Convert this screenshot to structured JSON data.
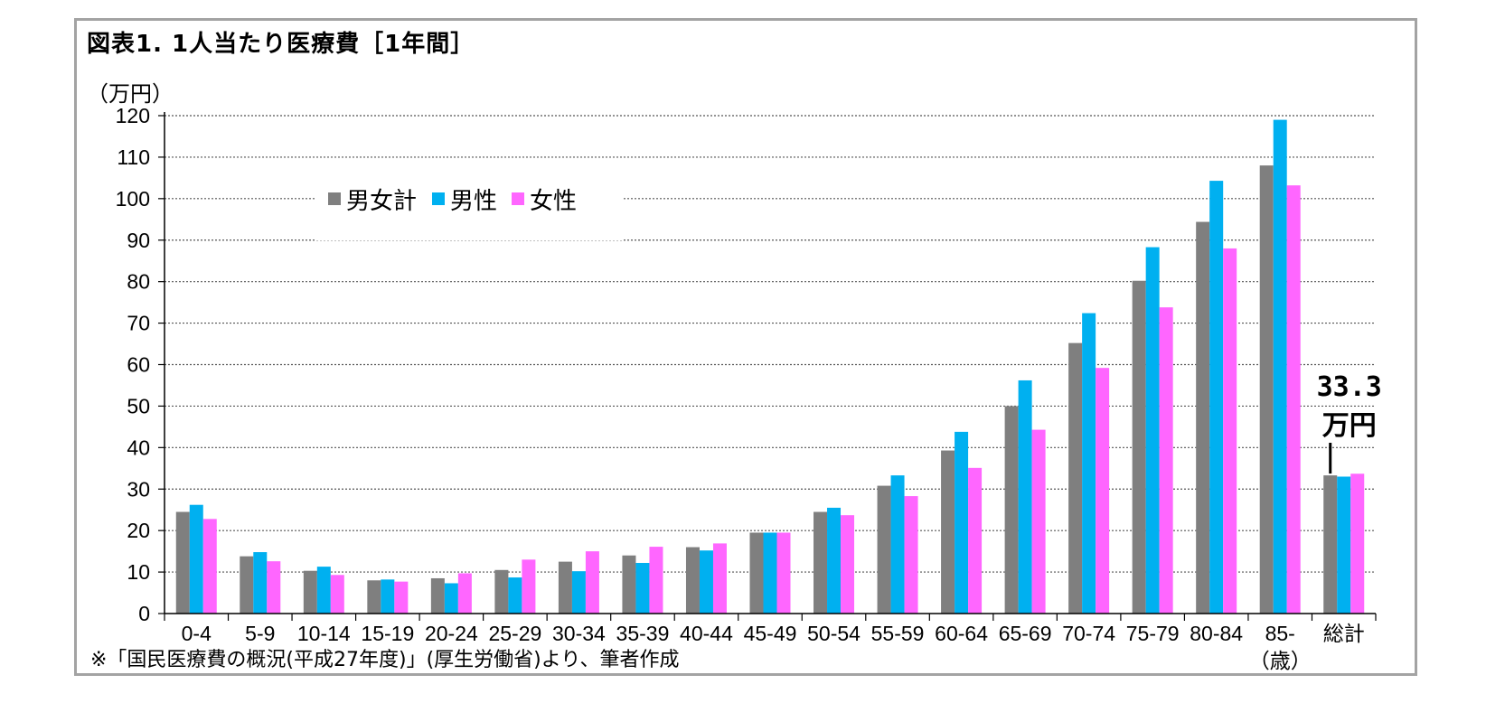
{
  "chart_data": {
    "type": "bar",
    "title": "図表1. 1人当たり医療費［1年間］",
    "ylabel": "（万円）",
    "ylim": [
      0,
      120
    ],
    "yticks": [
      0,
      10,
      20,
      30,
      40,
      50,
      60,
      70,
      80,
      90,
      100,
      110,
      120
    ],
    "grid": true,
    "legend_position": "top-left",
    "categories": [
      "0-4",
      "5-9",
      "10-14",
      "15-19",
      "20-24",
      "25-29",
      "30-34",
      "35-39",
      "40-44",
      "45-49",
      "50-54",
      "55-59",
      "60-64",
      "65-69",
      "70-74",
      "75-79",
      "80-84",
      "85-",
      "総計"
    ],
    "category_sublabel": {
      "index": 17,
      "text": "（歳）"
    },
    "series": [
      {
        "name": "男女計",
        "color": "#7f7f7f",
        "values": [
          24.5,
          13.8,
          10.3,
          8.0,
          8.5,
          10.5,
          12.5,
          14.0,
          16.0,
          19.5,
          24.5,
          30.8,
          39.3,
          50.0,
          65.2,
          80.2,
          94.4,
          108.0,
          33.3
        ]
      },
      {
        "name": "男性",
        "color": "#00b0f0",
        "values": [
          26.2,
          14.8,
          11.3,
          8.2,
          7.3,
          8.7,
          10.2,
          12.2,
          15.2,
          19.5,
          25.5,
          33.3,
          43.8,
          56.2,
          72.4,
          88.3,
          104.3,
          119.0,
          33.0
        ]
      },
      {
        "name": "女性",
        "color": "#ff66ff",
        "values": [
          22.8,
          12.6,
          9.3,
          7.7,
          9.7,
          13.0,
          15.0,
          16.1,
          16.9,
          19.5,
          23.7,
          28.3,
          35.1,
          44.3,
          59.2,
          73.8,
          88.0,
          103.2,
          33.7
        ]
      }
    ],
    "annotations": [
      {
        "category": "総計",
        "text_line1": "33.3",
        "text_line2": "万円"
      }
    ]
  },
  "source_note": "※「国民医療費の概況(平成27年度)」(厚生労働省)より、筆者作成"
}
